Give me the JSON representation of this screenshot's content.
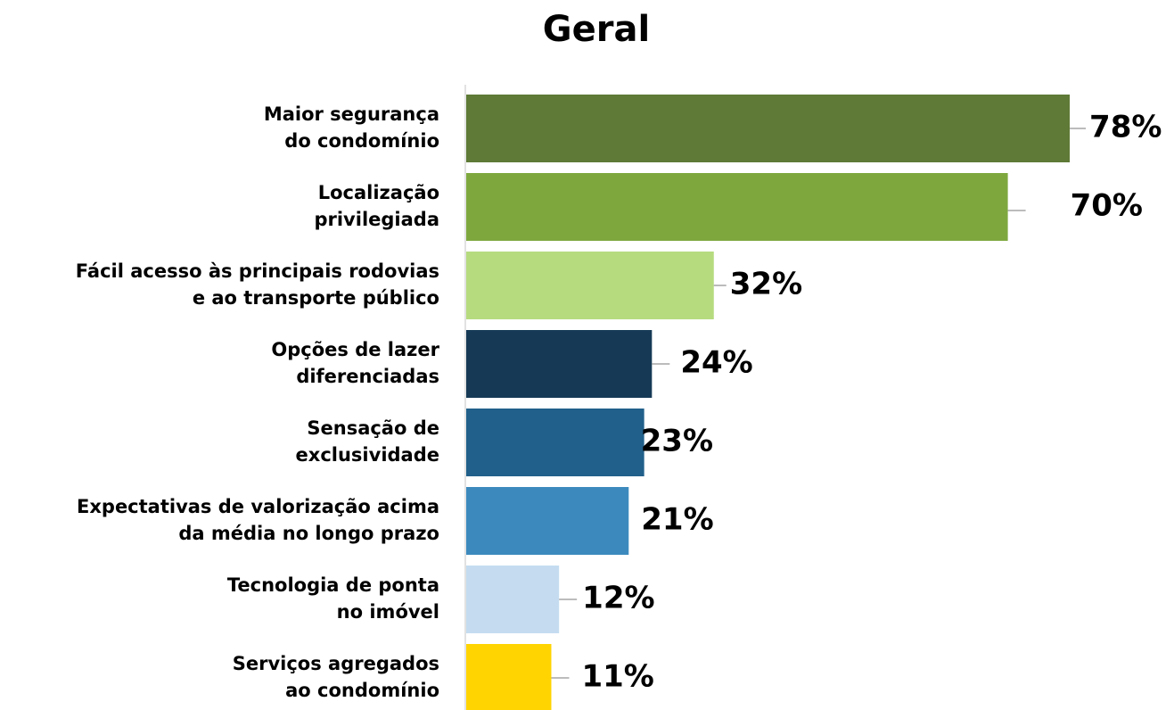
{
  "chart_data": {
    "type": "bar",
    "orientation": "horizontal",
    "title": "Geral",
    "categories": [
      [
        "Maior segurança",
        "do condomínio"
      ],
      [
        "Localização",
        "privilegiada"
      ],
      [
        "Fácil acesso às principais rodovias",
        "e ao transporte público"
      ],
      [
        "Opções de lazer",
        "diferenciadas"
      ],
      [
        "Sensação de",
        "exclusividade"
      ],
      [
        "Expectativas de valorização acima",
        "da média no longo prazo"
      ],
      [
        "Tecnologia de ponta",
        "no imóvel"
      ],
      [
        "Serviços agregados",
        "ao condomínio"
      ]
    ],
    "values": [
      78,
      70,
      32,
      24,
      23,
      21,
      12,
      11
    ],
    "value_labels": [
      "78%",
      "70%",
      "32%",
      "24%",
      "23%",
      "21%",
      "12%",
      "11%"
    ],
    "colors": [
      "#5e7a36",
      "#7ea83e",
      "#b6db7f",
      "#163a56",
      "#21608a",
      "#3c8abd",
      "#c5dcf0",
      "#ffd400"
    ]
  }
}
